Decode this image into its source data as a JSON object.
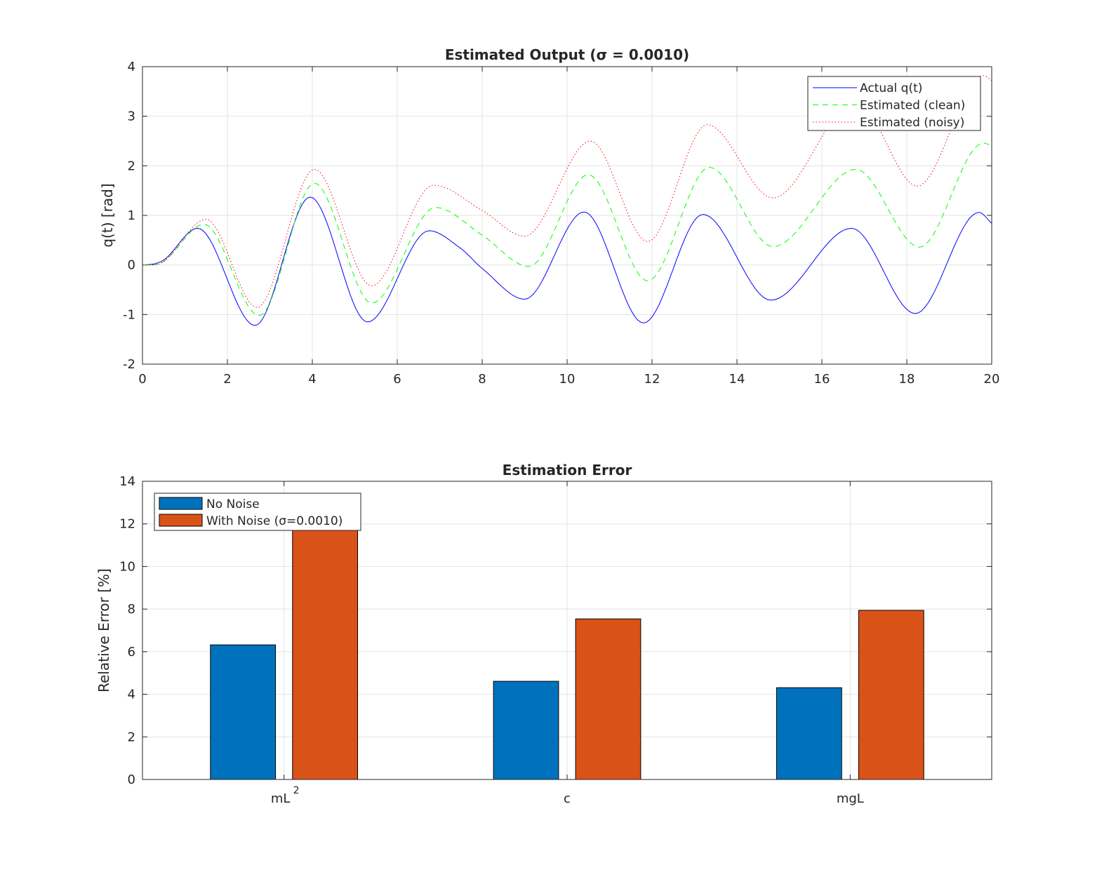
{
  "chart_data": [
    {
      "type": "line",
      "title": "Estimated Output (σ = 0.0010)",
      "xlabel": "",
      "ylabel": "q(t) [rad]",
      "xlim": [
        0,
        20
      ],
      "ylim": [
        -2,
        4
      ],
      "xticks": [
        "0",
        "2",
        "4",
        "6",
        "8",
        "10",
        "12",
        "14",
        "16",
        "18",
        "20"
      ],
      "yticks": [
        "-2",
        "-1",
        "0",
        "1",
        "2",
        "3",
        "4"
      ],
      "grid": true,
      "legend_position": "top-right",
      "series": [
        {
          "name": "Actual q(t)",
          "color": "#0000ff",
          "style": "solid",
          "x": [
            0,
            0.5,
            1.3,
            2.65,
            3.95,
            5.3,
            6.75,
            7.5,
            8,
            9,
            10.4,
            11.8,
            13.2,
            14.8,
            16.7,
            18.2,
            19.7,
            20
          ],
          "y": [
            0,
            0.1,
            0.74,
            -1.22,
            1.37,
            -1.15,
            0.69,
            0.33,
            -0.07,
            -0.69,
            1.07,
            -1.17,
            1.02,
            -0.71,
            0.74,
            -0.98,
            1.06,
            0.84
          ]
        },
        {
          "name": "Estimated (clean)",
          "color": "#00ff00",
          "style": "dashed",
          "x": [
            0,
            0.5,
            1.45,
            2.75,
            4.05,
            5.4,
            6.9,
            8,
            9.1,
            10.5,
            11.9,
            13.35,
            14.85,
            16.8,
            18.3,
            19.8,
            20
          ],
          "y": [
            0,
            0.07,
            0.82,
            -1.02,
            1.65,
            -0.77,
            1.16,
            0.6,
            -0.03,
            1.82,
            -0.32,
            1.97,
            0.37,
            1.93,
            0.36,
            2.46,
            2.4
          ]
        },
        {
          "name": "Estimated (noisy)",
          "color": "#ff0000",
          "style": "dotted",
          "x": [
            0,
            0.5,
            1.5,
            2.7,
            4.05,
            5.4,
            6.85,
            8,
            9,
            10.55,
            11.9,
            13.3,
            14.85,
            16.8,
            18.25,
            19.8,
            20
          ],
          "y": [
            0,
            0.07,
            0.92,
            -0.86,
            1.93,
            -0.42,
            1.61,
            1.1,
            0.58,
            2.5,
            0.47,
            2.83,
            1.35,
            3.3,
            1.59,
            3.82,
            3.72
          ]
        }
      ]
    },
    {
      "type": "bar",
      "title": "Estimation Error",
      "xlabel": "",
      "ylabel": "Relative Error [%]",
      "ylim": [
        0,
        14
      ],
      "yticks": [
        "0",
        "2",
        "4",
        "6",
        "8",
        "10",
        "12",
        "14"
      ],
      "categories": [
        "mL",
        "c",
        "mgL"
      ],
      "category_superscripts": [
        "2",
        "",
        ""
      ],
      "grid": true,
      "legend_position": "top-left",
      "series": [
        {
          "name": "No Noise",
          "color": "#0072bd",
          "values": [
            6.32,
            4.61,
            4.31
          ]
        },
        {
          "name": "With Noise (σ=0.0010)",
          "color": "#d95319",
          "values": [
            12.0,
            7.54,
            7.94
          ]
        }
      ]
    }
  ]
}
